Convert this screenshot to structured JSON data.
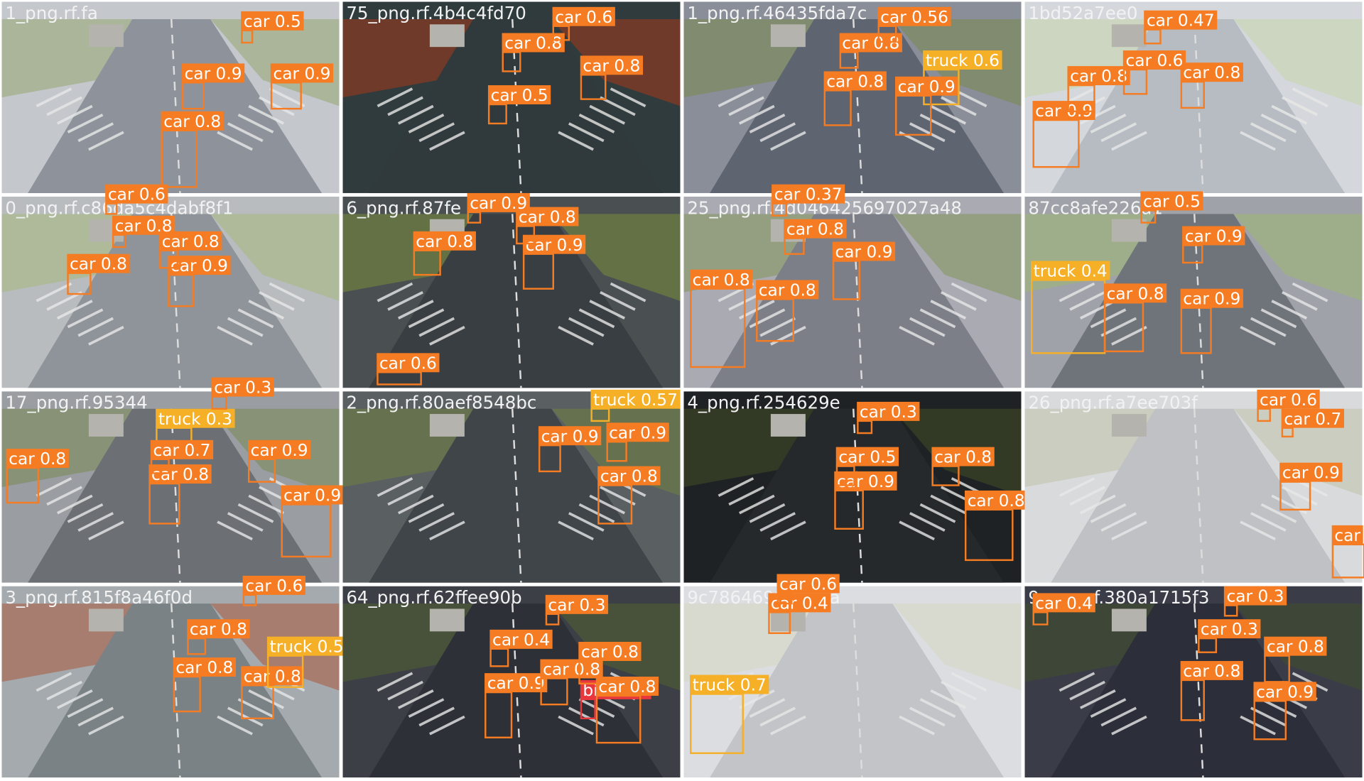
{
  "tiles": [
    {
      "filename": "1_png.rf.fa",
      "detections": [
        {
          "label": "car 0.9"
        },
        {
          "label": "car 0.9"
        },
        {
          "label": "car 0.8"
        },
        {
          "label": "car 0.5"
        }
      ]
    },
    {
      "filename": "75_png.rf.4b4c4fd70",
      "detections": [
        {
          "label": "car 0.8"
        },
        {
          "label": "car 0.8"
        },
        {
          "label": "car 0.5"
        },
        {
          "label": "car 0.6"
        }
      ]
    },
    {
      "filename": "1_png.rf.46435fda7c",
      "detections": [
        {
          "label": "car 0.8"
        },
        {
          "label": "truck 0.6"
        },
        {
          "label": "car 0.8"
        },
        {
          "label": "car 0.9"
        },
        {
          "label": "car 0.56"
        }
      ]
    },
    {
      "filename": "1bd52a7ee0",
      "detections": [
        {
          "label": "car 0.9"
        },
        {
          "label": "car 0.8"
        },
        {
          "label": "car 0.8"
        },
        {
          "label": "car 0.6"
        },
        {
          "label": "car 0.47"
        }
      ]
    },
    {
      "filename": "0_png.rf.c86da5c4dabf8f1",
      "detections": [
        {
          "label": "car 0.8"
        },
        {
          "label": "car 0.9"
        },
        {
          "label": "car 0.8"
        },
        {
          "label": "car 0.6"
        },
        {
          "label": "car 0.8"
        }
      ]
    },
    {
      "filename": "6_png.rf.87fe",
      "detections": [
        {
          "label": "car 0.8"
        },
        {
          "label": "car 0.9"
        },
        {
          "label": "car 0.8"
        },
        {
          "label": "car 0.9"
        },
        {
          "label": "car 0.6"
        }
      ]
    },
    {
      "filename": "25_png.rf.4d046425697027a48",
      "detections": [
        {
          "label": "car 0.8"
        },
        {
          "label": "car 0.8"
        },
        {
          "label": "car 0.9"
        },
        {
          "label": "car 0.8"
        },
        {
          "label": "car 0.37"
        }
      ]
    },
    {
      "filename": "87cc8afe226a1",
      "detections": [
        {
          "label": "truck 0.4"
        },
        {
          "label": "car 0.8"
        },
        {
          "label": "car 0.9"
        },
        {
          "label": "car 0.9"
        },
        {
          "label": "car 0.5"
        }
      ]
    },
    {
      "filename": "17_png.rf.95344",
      "detections": [
        {
          "label": "car 0.8"
        },
        {
          "label": "car 0.8"
        },
        {
          "label": "car 0.9"
        },
        {
          "label": "truck 0.3"
        },
        {
          "label": "car 0.7"
        },
        {
          "label": "car 0.9"
        },
        {
          "label": "car 0.3"
        }
      ]
    },
    {
      "filename": "2_png.rf.80aef8548bc",
      "detections": [
        {
          "label": "car 0.8"
        },
        {
          "label": "car 0.9"
        },
        {
          "label": "car 0.9"
        },
        {
          "label": "truck 0.57"
        }
      ]
    },
    {
      "filename": "4_png.rf.254629e",
      "detections": [
        {
          "label": "car 0.8"
        },
        {
          "label": "car 0.9"
        },
        {
          "label": "car 0.5"
        },
        {
          "label": "car 0.8"
        },
        {
          "label": "car 0.3"
        }
      ]
    },
    {
      "filename": "26_png.rf.a7ee703f",
      "detections": [
        {
          "label": "car 0.9"
        },
        {
          "label": "car"
        },
        {
          "label": "car 0.6"
        },
        {
          "label": "car 0.7"
        }
      ]
    },
    {
      "filename": "3_png.rf.815f8a46f0d",
      "detections": [
        {
          "label": "car 0.8"
        },
        {
          "label": "car 0.8"
        },
        {
          "label": "car 0.8"
        },
        {
          "label": "truck 0.5"
        },
        {
          "label": "car 0.6"
        }
      ]
    },
    {
      "filename": "64_png.rf.62ffee90b",
      "detections": [
        {
          "label": "car 0.9"
        },
        {
          "label": "bike 0.4"
        },
        {
          "label": "car 0.8"
        },
        {
          "label": "car 0.8"
        },
        {
          "label": "car 0.4"
        },
        {
          "label": "car 0.8"
        },
        {
          "label": "car 0.3"
        }
      ]
    },
    {
      "filename": "9c7864699d17ba",
      "detections": [
        {
          "label": "truck 0.7"
        },
        {
          "label": "car 0.4"
        },
        {
          "label": "car 0.6"
        }
      ]
    },
    {
      "filename": "9_png.rf.380a1715f3",
      "detections": [
        {
          "label": "car 0.9"
        },
        {
          "label": "car 0.8"
        },
        {
          "label": "car 0.8"
        },
        {
          "label": "car 0.3"
        },
        {
          "label": "car 0.4"
        },
        {
          "label": "car 0.3"
        }
      ]
    }
  ]
}
